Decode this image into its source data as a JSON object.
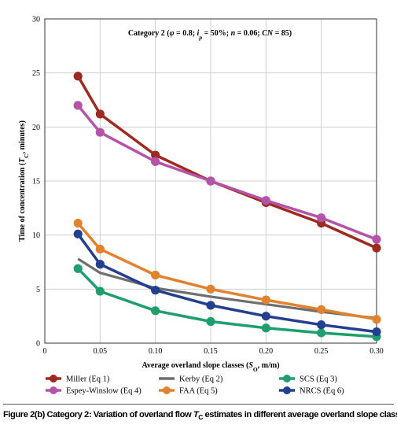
{
  "chart_data": {
    "type": "line",
    "title_prefix": "Category 2 (",
    "annotation_parts": [
      {
        "t": "Category 2 ("
      },
      {
        "t": "φ",
        "i": true
      },
      {
        "t": " = 0.8; "
      },
      {
        "t": "i",
        "i": true
      },
      {
        "t": "p",
        "i": true,
        "sub": true
      },
      {
        "t": " = 50%; "
      },
      {
        "t": "n",
        "i": true
      },
      {
        "t": " = 0.06; "
      },
      {
        "t": "CN",
        "i": true
      },
      {
        "t": " = 85)"
      }
    ],
    "xlabel_parts": [
      {
        "t": "Average overland slope classes ("
      },
      {
        "t": "S",
        "i": true
      },
      {
        "t": "O",
        "sub": true
      },
      {
        "t": ", m/m)"
      }
    ],
    "ylabel_parts": [
      {
        "t": "Time of concentration ("
      },
      {
        "t": "T",
        "i": true
      },
      {
        "t": "C",
        "sub": true
      },
      {
        "t": ", minutes)"
      }
    ],
    "xlim": [
      0,
      0.3
    ],
    "ylim": [
      0,
      30
    ],
    "xticks": [
      0,
      0.05,
      0.1,
      0.15,
      0.2,
      0.25,
      0.3
    ],
    "xtick_labels": [
      "0",
      "0.05",
      "0.10",
      "0.15",
      "0.20",
      "0.25",
      "0.30"
    ],
    "yticks": [
      0,
      5,
      10,
      15,
      20,
      25,
      30
    ],
    "ytick_labels": [
      "0",
      "5",
      "10",
      "15",
      "20",
      "25",
      "30"
    ],
    "grid": true,
    "legend_position": "bottom",
    "x": [
      0.03,
      0.05,
      0.1,
      0.15,
      0.2,
      0.25,
      0.3
    ],
    "series": [
      {
        "name": "Miller (Eq 1)",
        "color": "#9e2a1f",
        "markers": true,
        "values": [
          24.7,
          21.2,
          17.4,
          15.0,
          13.0,
          11.1,
          8.8
        ]
      },
      {
        "name": "Kerby (Eq 2)",
        "color": "#6d6e70",
        "markers": false,
        "values": [
          7.8,
          6.5,
          5.1,
          4.3,
          3.6,
          2.9,
          2.3
        ]
      },
      {
        "name": "SCS (Eq 3)",
        "color": "#1f9e6e",
        "markers": true,
        "values": [
          6.9,
          4.8,
          3.0,
          2.0,
          1.4,
          0.95,
          0.6
        ]
      },
      {
        "name": "Espey-Winslow (Eq 4)",
        "color": "#b553a8",
        "markers": true,
        "values": [
          22.0,
          19.5,
          16.8,
          15.0,
          13.2,
          11.6,
          9.6
        ]
      },
      {
        "name": "FAA (Eq 5)",
        "color": "#e0822f",
        "markers": true,
        "values": [
          11.1,
          8.7,
          6.3,
          5.0,
          4.0,
          3.1,
          2.2
        ]
      },
      {
        "name": "NRCS (Eq 6)",
        "color": "#233f8f",
        "markers": true,
        "values": [
          10.1,
          7.3,
          4.9,
          3.5,
          2.5,
          1.7,
          1.05
        ]
      }
    ],
    "caption_parts": [
      {
        "t": "Figure 2(b) Category 2: Variation of overland flow "
      },
      {
        "t": "T",
        "i": true
      },
      {
        "t": "C",
        "sub": true
      },
      {
        "t": " estimates in different average overland slope classes"
      }
    ]
  }
}
